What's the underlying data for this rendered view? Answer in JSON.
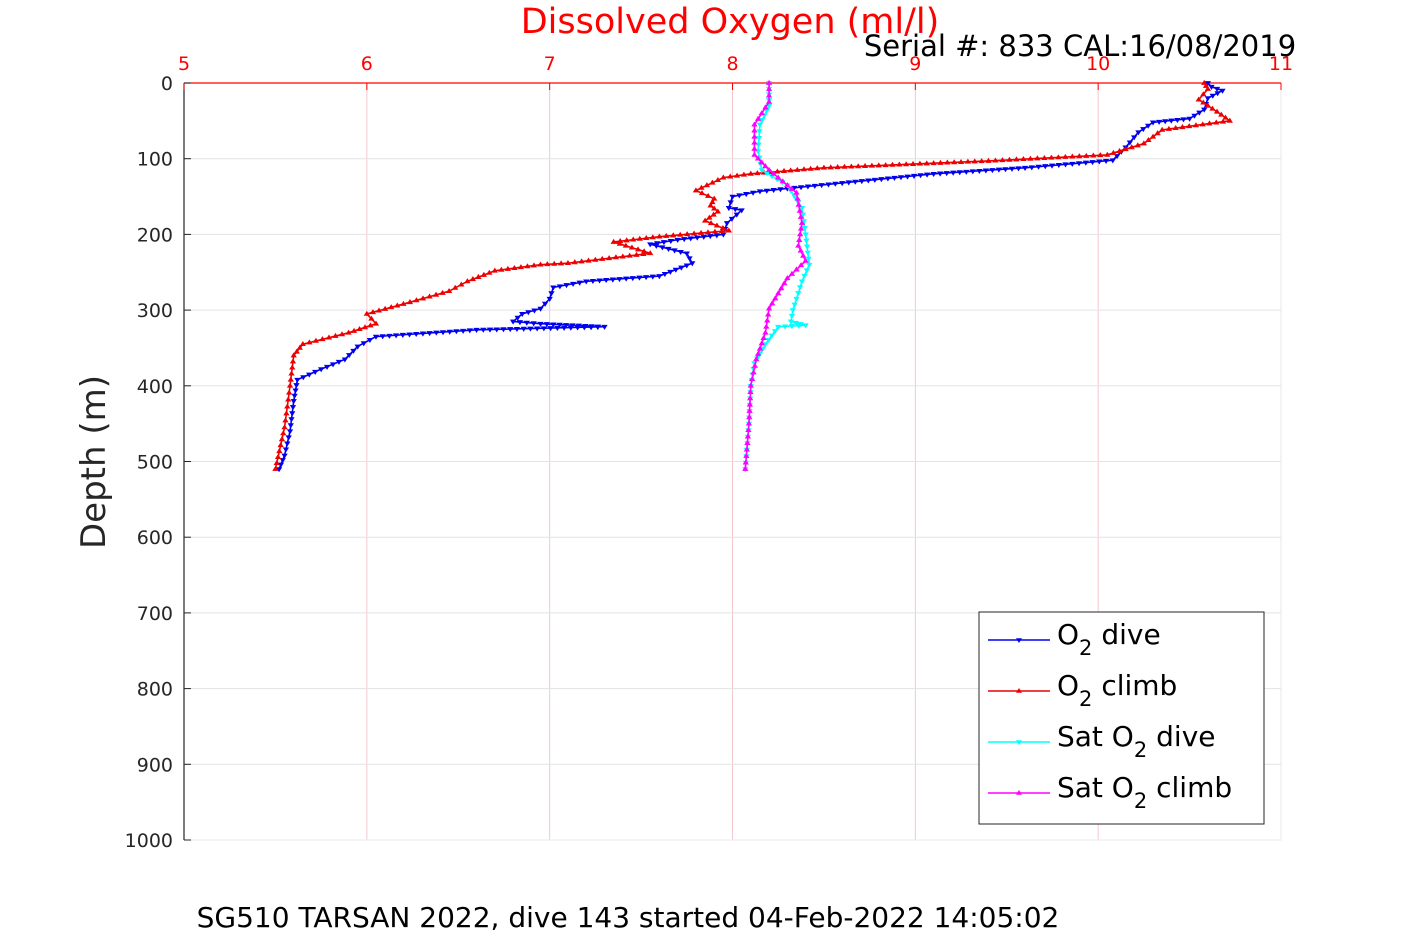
{
  "chart_data": {
    "type": "line",
    "title": "Dissolved Oxygen (ml/l)",
    "subtitle": "Serial #: 833  CAL:16/08/2019",
    "caption": "SG510 TARSAN 2022, dive 143 started 04-Feb-2022 14:05:02",
    "xlabel": "",
    "ylabel": "Depth (m)",
    "xlim": [
      5,
      11
    ],
    "ylim": [
      0,
      1000
    ],
    "x_axis_position": "top",
    "y_reversed": true,
    "x_ticks": [
      "5",
      "6",
      "7",
      "8",
      "9",
      "10",
      "11"
    ],
    "y_ticks": [
      "0",
      "100",
      "200",
      "300",
      "400",
      "500",
      "600",
      "700",
      "800",
      "900",
      "1000"
    ],
    "grid": true,
    "legend_position": "bottom-right",
    "colors": {
      "title": "#ff0000",
      "x_ticks": "#ff0000",
      "grid": "#f4c7cf",
      "o2_dive": "#0000ee",
      "o2_climb": "#ee0000",
      "sat_dive": "#00ffff",
      "sat_climb": "#ff00ff"
    },
    "series": [
      {
        "name": "O2 dive",
        "legend_main": "O",
        "legend_sub": "2",
        "legend_suffix": " dive",
        "color": "#0000ee",
        "marker": "down-triangle",
        "points": [
          [
            10.6,
            0
          ],
          [
            10.62,
            5
          ],
          [
            10.68,
            10
          ],
          [
            10.6,
            20
          ],
          [
            10.58,
            35
          ],
          [
            10.5,
            47
          ],
          [
            10.3,
            52
          ],
          [
            10.22,
            65
          ],
          [
            10.15,
            85
          ],
          [
            10.08,
            102
          ],
          [
            9.6,
            112
          ],
          [
            9.1,
            120
          ],
          [
            8.6,
            132
          ],
          [
            8.15,
            143
          ],
          [
            8.0,
            150
          ],
          [
            7.98,
            165
          ],
          [
            8.05,
            168
          ],
          [
            7.97,
            185
          ],
          [
            7.95,
            200
          ],
          [
            7.7,
            207
          ],
          [
            7.55,
            213
          ],
          [
            7.75,
            225
          ],
          [
            7.78,
            238
          ],
          [
            7.6,
            255
          ],
          [
            7.2,
            262
          ],
          [
            7.02,
            270
          ],
          [
            7.0,
            285
          ],
          [
            6.95,
            298
          ],
          [
            6.85,
            305
          ],
          [
            6.8,
            315
          ],
          [
            6.95,
            318
          ],
          [
            7.3,
            322
          ],
          [
            6.6,
            326
          ],
          [
            6.05,
            335
          ],
          [
            5.95,
            348
          ],
          [
            5.88,
            365
          ],
          [
            5.75,
            378
          ],
          [
            5.62,
            392
          ],
          [
            5.6,
            420
          ],
          [
            5.58,
            460
          ],
          [
            5.55,
            492
          ],
          [
            5.52,
            510
          ]
        ]
      },
      {
        "name": "O2 climb",
        "legend_main": "O",
        "legend_sub": "2",
        "legend_suffix": " climb",
        "color": "#ee0000",
        "marker": "up-triangle",
        "points": [
          [
            10.58,
            0
          ],
          [
            10.6,
            8
          ],
          [
            10.55,
            22
          ],
          [
            10.65,
            38
          ],
          [
            10.72,
            50
          ],
          [
            10.35,
            62
          ],
          [
            10.25,
            80
          ],
          [
            10.05,
            95
          ],
          [
            9.4,
            103
          ],
          [
            8.5,
            112
          ],
          [
            8.1,
            120
          ],
          [
            7.95,
            125
          ],
          [
            7.8,
            142
          ],
          [
            7.9,
            153
          ],
          [
            7.88,
            162
          ],
          [
            7.92,
            170
          ],
          [
            7.85,
            182
          ],
          [
            7.98,
            195
          ],
          [
            7.6,
            203
          ],
          [
            7.35,
            210
          ],
          [
            7.55,
            225
          ],
          [
            7.1,
            238
          ],
          [
            6.95,
            240
          ],
          [
            6.7,
            248
          ],
          [
            6.55,
            262
          ],
          [
            6.45,
            275
          ],
          [
            6.2,
            292
          ],
          [
            6.0,
            305
          ],
          [
            6.05,
            318
          ],
          [
            5.9,
            330
          ],
          [
            5.65,
            345
          ],
          [
            5.6,
            360
          ],
          [
            5.58,
            400
          ],
          [
            5.55,
            455
          ],
          [
            5.5,
            510
          ]
        ]
      },
      {
        "name": "Sat O2 dive",
        "legend_main": "Sat O",
        "legend_sub": "2",
        "legend_suffix": " dive",
        "color": "#00ffff",
        "marker": "down-triangle",
        "points": [
          [
            8.2,
            0
          ],
          [
            8.2,
            30
          ],
          [
            8.15,
            55
          ],
          [
            8.14,
            90
          ],
          [
            8.16,
            115
          ],
          [
            8.3,
            135
          ],
          [
            8.38,
            165
          ],
          [
            8.4,
            200
          ],
          [
            8.42,
            240
          ],
          [
            8.38,
            262
          ],
          [
            8.35,
            285
          ],
          [
            8.33,
            300
          ],
          [
            8.32,
            315
          ],
          [
            8.4,
            320
          ],
          [
            8.25,
            322
          ],
          [
            8.18,
            345
          ],
          [
            8.12,
            370
          ],
          [
            8.1,
            400
          ],
          [
            8.09,
            450
          ],
          [
            8.07,
            510
          ]
        ]
      },
      {
        "name": "Sat O2 climb",
        "legend_main": "Sat O",
        "legend_sub": "2",
        "legend_suffix": " climb",
        "color": "#ff00ff",
        "marker": "up-triangle",
        "points": [
          [
            8.2,
            0
          ],
          [
            8.2,
            25
          ],
          [
            8.12,
            55
          ],
          [
            8.12,
            95
          ],
          [
            8.2,
            115
          ],
          [
            8.35,
            145
          ],
          [
            8.38,
            185
          ],
          [
            8.36,
            215
          ],
          [
            8.4,
            235
          ],
          [
            8.3,
            258
          ],
          [
            8.2,
            298
          ],
          [
            8.18,
            330
          ],
          [
            8.13,
            365
          ],
          [
            8.1,
            400
          ],
          [
            8.09,
            450
          ],
          [
            8.07,
            510
          ]
        ]
      }
    ]
  }
}
